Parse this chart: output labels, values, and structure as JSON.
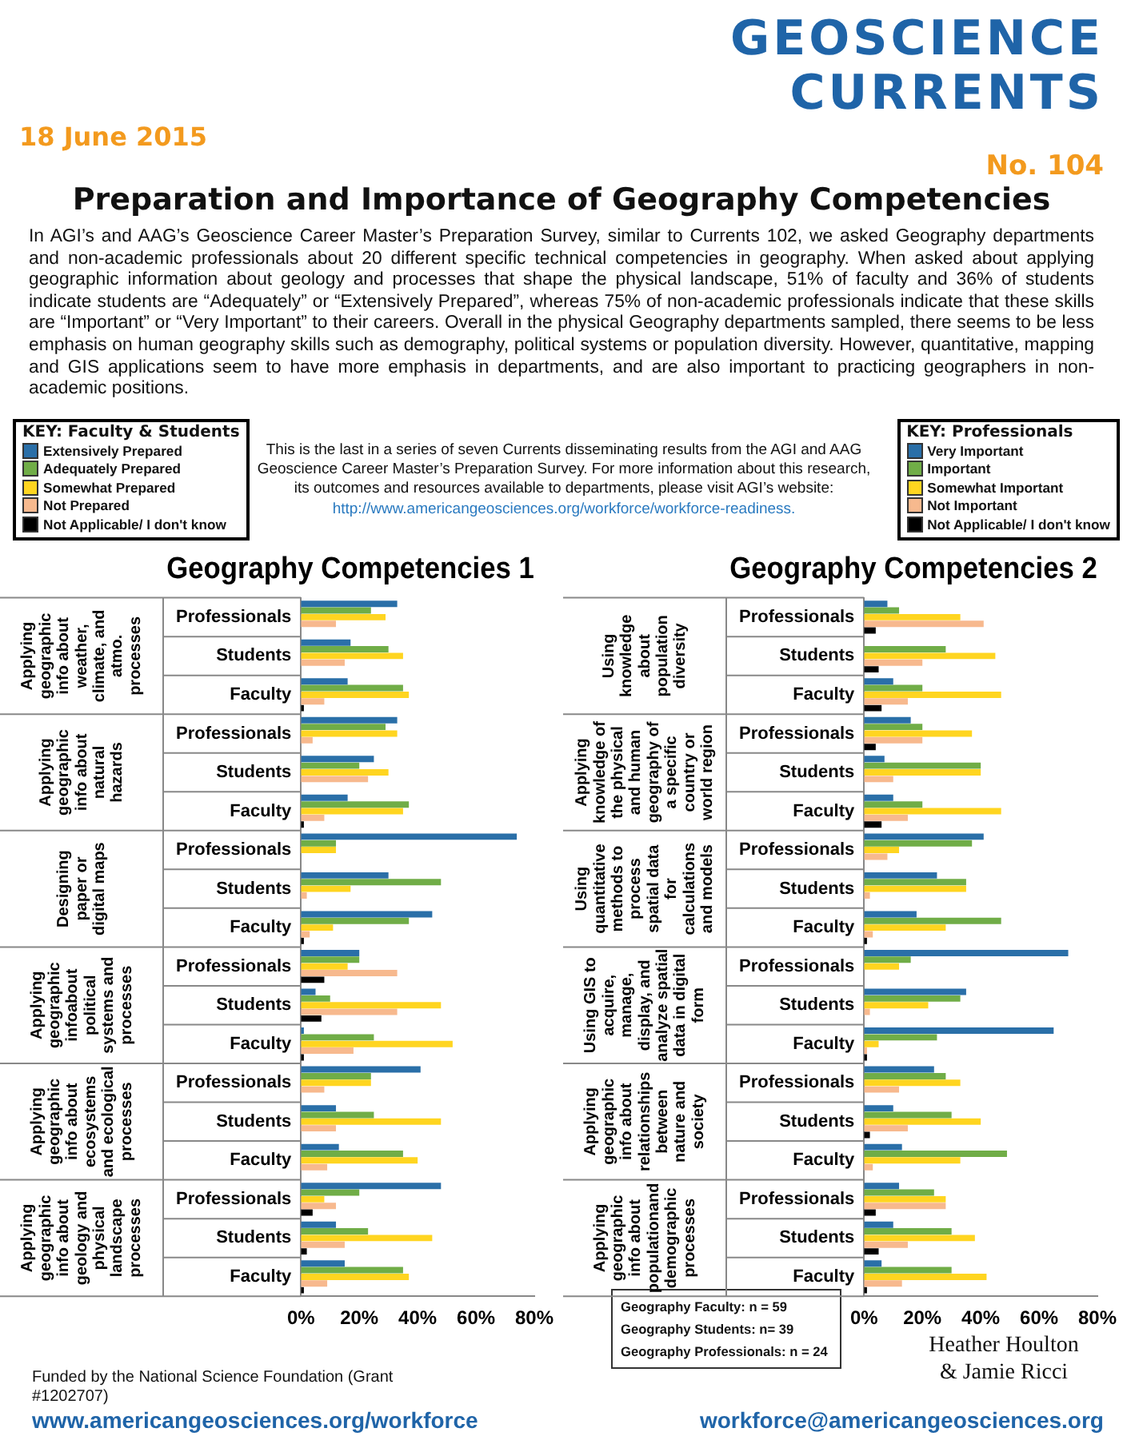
{
  "chart_data": [
    {
      "type": "other",
      "title": "Preparation and Importance of Geography Competencies",
      "subtitle": "In AGI’s and AAG’s Geoscience Career Master’s Preparation Survey, similar to Currents 102, we asked Geography departments and non-academic professionals about 20 different specific technical competencies in geography.  When asked about applying geographic information about geology and processes that shape the physical landscape, 51% of faculty and 36% of students indicate students are “Adequately” or “Extensively Prepared”, whereas 75% of non-academic professionals indicate that these skills are “Important” or “Very Important” to their careers.  Overall in the physical Geography departments sampled, there seems to be less emphasis on human geography skills such as demography, political systems or population diversity.   However, quantitative, mapping and GIS applications seem to have more emphasis in departments, and are also important to practicing geographers in non-academic positions.",
      "annotations": [
        "GEOSCIENCE CURRENTS",
        "No. 104",
        "18 June 2015",
        "This is the last in a series of seven Currents disseminating results from the AGI and AAG Geoscience Career Master’s Preparation Survey.  For more information about this research, its outcomes and resources available to departments, please visit AGI’s website:",
        "http://www.americangeosciences.org/workforce/workforce-readiness.",
        "Geography Faculty: n = 59",
        "Geography Students: n= 39",
        "Geography Professionals: n = 24",
        "Heather Houlton",
        "& Jamie Ricci",
        "Funded by the National Science Foundation (Grant #1202707)",
        "www.americangeosciences.org/workforce",
        "workforce@americangeosciences.org"
      ]
    },
    {
      "type": "bar",
      "orientation": "horizontal",
      "title": "Geography Competencies 1",
      "legend": "top left",
      "legend_title": "KEY: Faculty & Students",
      "categories": [
        "Professionals",
        "Students",
        "Faculty",
        "Professionals",
        "Students",
        "Faculty",
        "Professionals",
        "Students",
        "Faculty",
        "Professionals",
        "Students",
        "Faculty",
        "Professionals",
        "Students",
        "Faculty",
        "Professionals",
        "Students",
        "Faculty"
      ],
      "annotations": [
        "Applying geographic info about weather, climate, and atmo. processes",
        "Applying geographic info about natural hazards",
        "Designing paper or digital maps",
        "Applying geographic infoabout political systems and processes",
        "Applying geographic info about ecosystems and ecological processes",
        "Applying geographic info about geology and physical landscape processes"
      ],
      "xlim": [
        0,
        80
      ],
      "xticks": [
        {
          "value": 0,
          "label": "0%"
        },
        {
          "value": 20,
          "label": "20%"
        },
        {
          "value": 40,
          "label": "40%"
        },
        {
          "value": 60,
          "label": "60%"
        },
        {
          "value": 80,
          "label": "80%"
        }
      ],
      "series": [
        {
          "name": "Extensively Prepared",
          "color": "#2a6fa8",
          "values": [
            33,
            17,
            16,
            33,
            25,
            16,
            74,
            30,
            45,
            20,
            5,
            1,
            41,
            12,
            13,
            48,
            12,
            15
          ]
        },
        {
          "name": "Adequately Prepared",
          "color": "#70ad47",
          "values": [
            24,
            30,
            35,
            29,
            20,
            37,
            12,
            48,
            37,
            20,
            10,
            25,
            24,
            25,
            35,
            20,
            23,
            35
          ]
        },
        {
          "name": "Somewhat Prepared",
          "color": "#ffd520",
          "values": [
            29,
            35,
            37,
            33,
            30,
            35,
            12,
            17,
            11,
            16,
            48,
            52,
            24,
            48,
            40,
            8,
            45,
            37
          ]
        },
        {
          "name": "Not Prepared",
          "color": "#f7b98e",
          "values": [
            12,
            15,
            8,
            4,
            23,
            8,
            0,
            2,
            3,
            33,
            33,
            18,
            8,
            12,
            9,
            12,
            15,
            9
          ]
        },
        {
          "name": "Not Applicable/ I don't know",
          "color": "#000000",
          "values": [
            0,
            0,
            1,
            0,
            0,
            1,
            0,
            0,
            1,
            8,
            7,
            1,
            0,
            0,
            0,
            4,
            2,
            1
          ]
        }
      ]
    },
    {
      "type": "bar",
      "orientation": "horizontal",
      "title": "Geography Competencies 2",
      "legend": "top right",
      "legend_title": "KEY: Professionals",
      "categories": [
        "Professionals",
        "Students",
        "Faculty",
        "Professionals",
        "Students",
        "Faculty",
        "Professionals",
        "Students",
        "Faculty",
        "Professionals",
        "Students",
        "Faculty",
        "Professionals",
        "Students",
        "Faculty",
        "Professionals",
        "Students",
        "Faculty"
      ],
      "annotations": [
        "Using knowledge about population diversity",
        "Applying knowledge of the physical and human geography of a specific country or world region",
        "Using quantitative methods to process spatial data for calculations and models",
        "Using GIS to acquire, manage, display, and analyze spatial data in digital form",
        "Applying geographic info about relationships between nature and society",
        "Applying geographic info about populationand demographic processes"
      ],
      "xlim": [
        0,
        80
      ],
      "xticks": [
        {
          "value": 0,
          "label": "0%"
        },
        {
          "value": 20,
          "label": "20%"
        },
        {
          "value": 40,
          "label": "40%"
        },
        {
          "value": 60,
          "label": "60%"
        },
        {
          "value": 80,
          "label": "80%"
        }
      ],
      "series": [
        {
          "name": "Very Important",
          "color": "#2a6fa8",
          "values": [
            8,
            0,
            10,
            16,
            7,
            10,
            41,
            25,
            18,
            70,
            35,
            65,
            24,
            10,
            13,
            12,
            10,
            6
          ]
        },
        {
          "name": "Important",
          "color": "#70ad47",
          "values": [
            12,
            28,
            20,
            20,
            40,
            20,
            37,
            35,
            47,
            16,
            33,
            25,
            28,
            30,
            49,
            24,
            30,
            30
          ]
        },
        {
          "name": "Somewhat Important",
          "color": "#ffd520",
          "values": [
            33,
            45,
            47,
            37,
            40,
            47,
            12,
            35,
            28,
            12,
            22,
            5,
            33,
            40,
            33,
            28,
            38,
            42
          ]
        },
        {
          "name": "Not Important",
          "color": "#f7b98e",
          "values": [
            41,
            20,
            15,
            20,
            10,
            15,
            8,
            2,
            3,
            0,
            2,
            1,
            12,
            15,
            3,
            28,
            15,
            13
          ]
        },
        {
          "name": "Not Applicable/ I don't know",
          "color": "#000000",
          "values": [
            4,
            5,
            6,
            4,
            0,
            6,
            0,
            0,
            1,
            0,
            0,
            1,
            0,
            2,
            0,
            4,
            5,
            1
          ]
        }
      ]
    }
  ]
}
